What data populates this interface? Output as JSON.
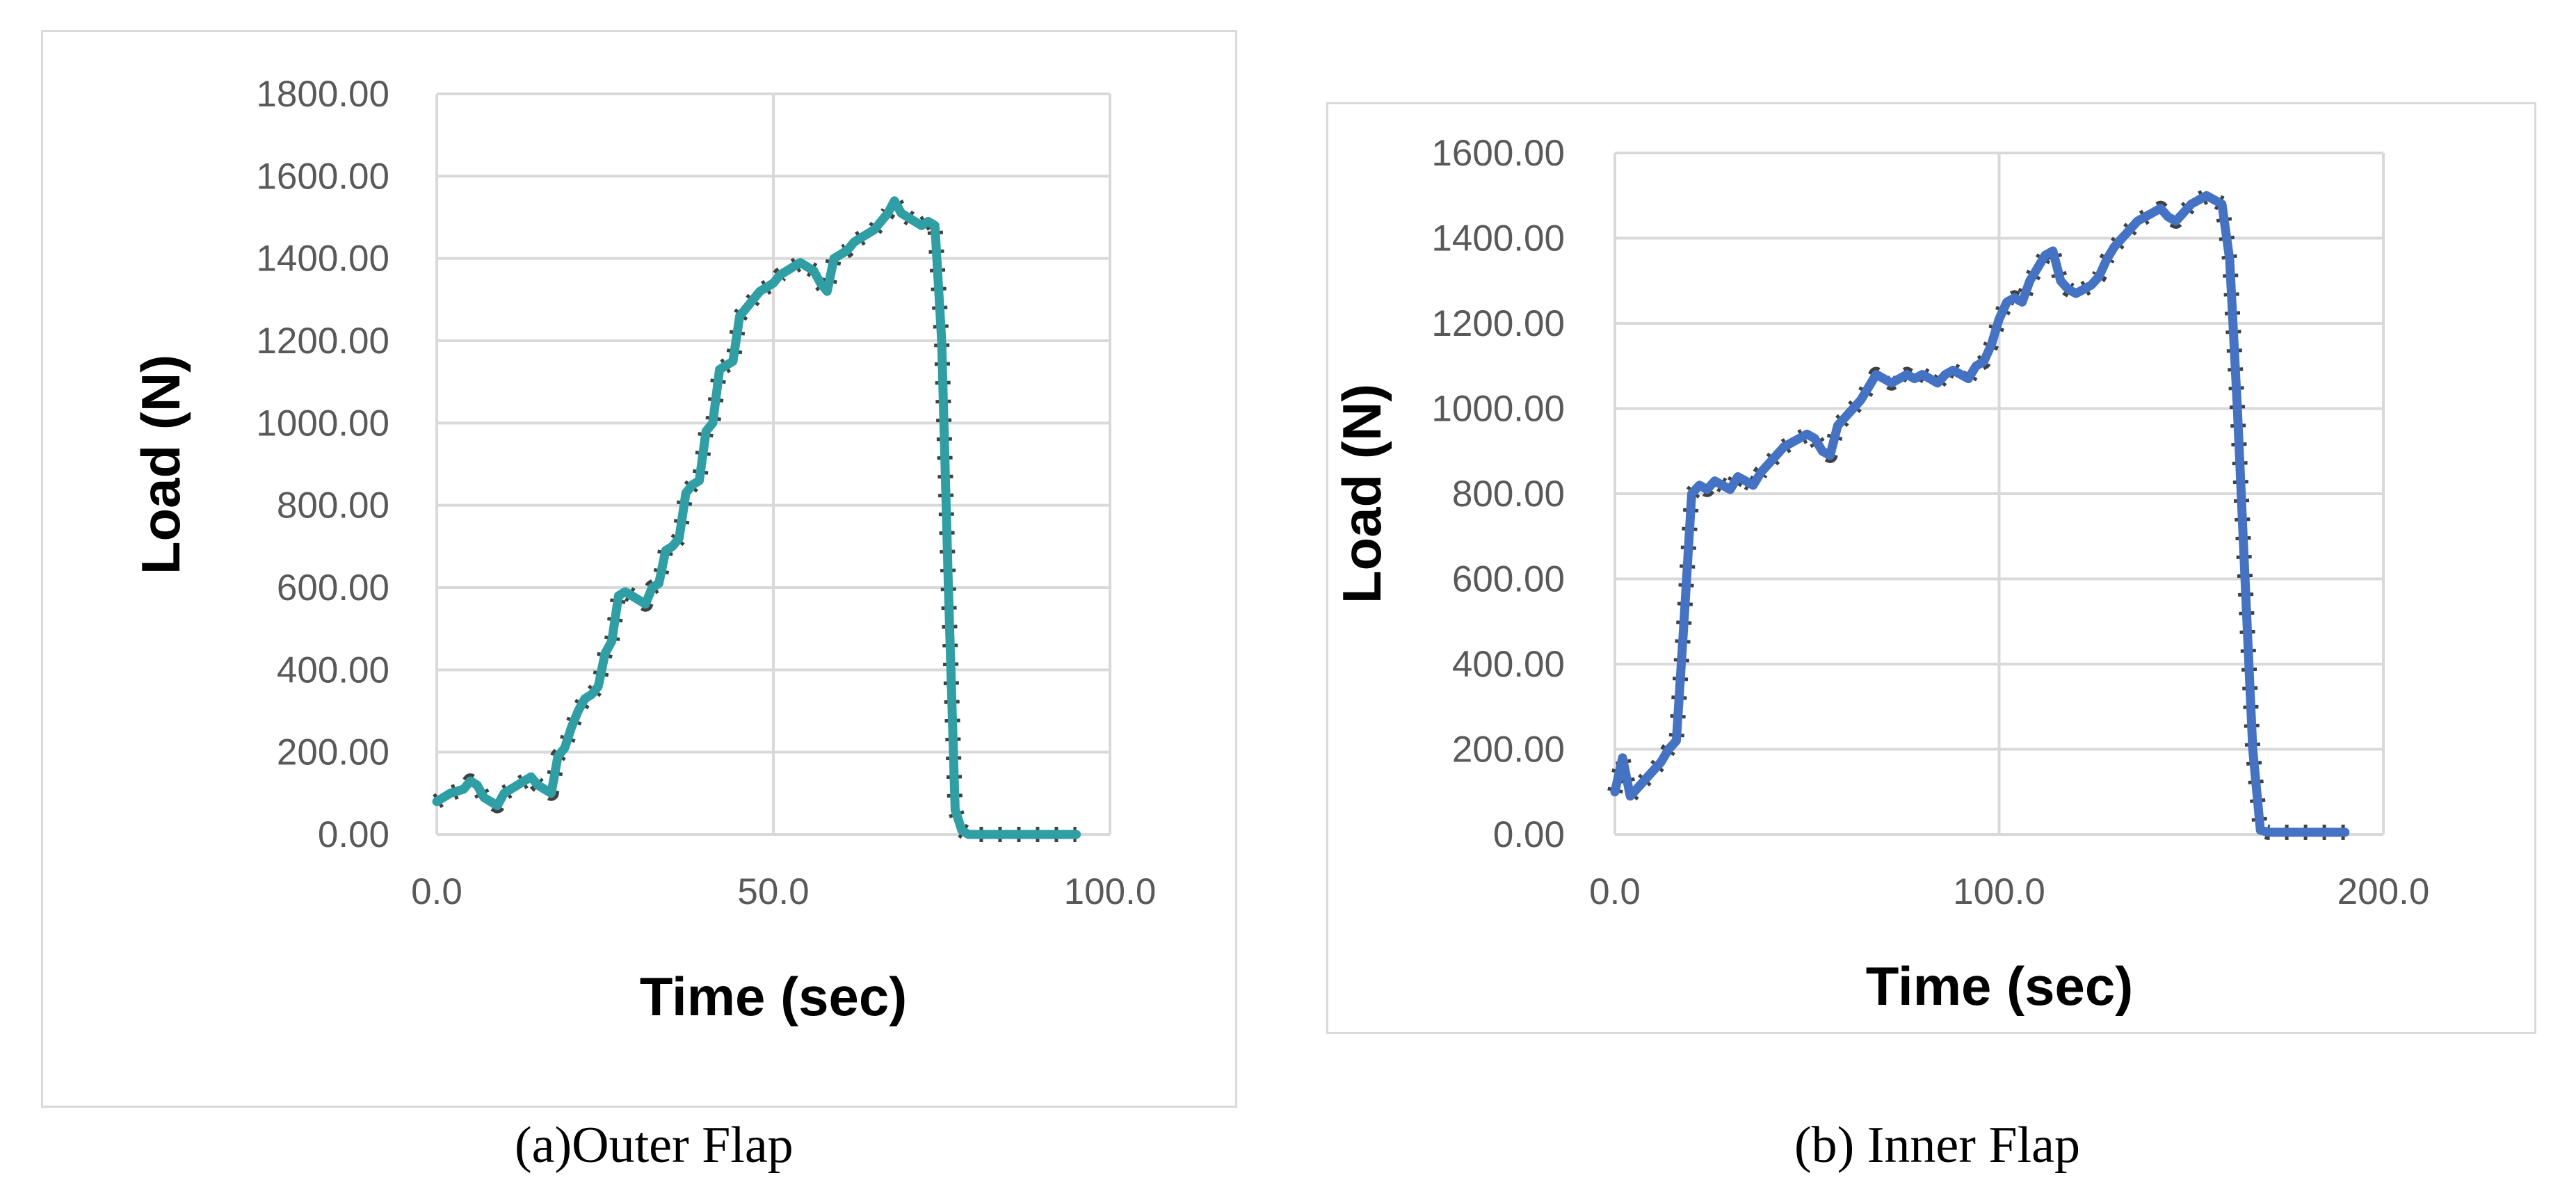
{
  "captions": {
    "a": "(a)Outer Flap",
    "b": "(b) Inner Flap"
  },
  "chart_data": [
    {
      "type": "line",
      "xlabel": "Time (sec)",
      "ylabel": "Load (N)",
      "xlim": [
        0,
        100
      ],
      "ylim": [
        0,
        1800
      ],
      "xticks": [
        "0.0",
        "50.0",
        "100.0"
      ],
      "yticks": [
        "0.00",
        "200.00",
        "400.00",
        "600.00",
        "800.00",
        "1000.00",
        "1200.00",
        "1400.00",
        "1600.00",
        "1800.00"
      ],
      "grid": true,
      "series": [
        {
          "color": "#2e9fa5",
          "x": [
            0,
            2,
            4,
            5,
            6,
            7,
            8,
            9,
            10,
            11,
            12,
            13,
            14,
            15,
            16,
            17,
            18,
            19,
            20,
            21,
            22,
            23,
            24,
            25,
            26,
            27,
            28,
            29,
            30,
            31,
            32,
            33,
            34,
            35,
            36,
            37,
            38,
            39,
            40,
            41,
            42,
            43,
            44,
            45,
            46,
            47,
            48,
            49,
            50,
            51,
            52,
            53,
            54,
            55,
            56,
            57,
            58,
            59,
            60,
            61,
            62,
            63,
            64,
            65,
            66,
            67,
            68,
            69,
            70,
            71,
            72,
            73,
            74,
            75,
            76,
            77,
            78,
            79,
            80,
            85,
            90,
            95
          ],
          "y": [
            80,
            100,
            110,
            130,
            120,
            90,
            80,
            70,
            100,
            110,
            120,
            130,
            140,
            120,
            110,
            100,
            190,
            210,
            260,
            300,
            330,
            340,
            360,
            440,
            470,
            580,
            590,
            580,
            570,
            560,
            600,
            610,
            690,
            700,
            720,
            830,
            850,
            860,
            980,
            1000,
            1130,
            1140,
            1150,
            1260,
            1280,
            1300,
            1320,
            1330,
            1340,
            1360,
            1370,
            1380,
            1390,
            1380,
            1370,
            1340,
            1320,
            1400,
            1410,
            1420,
            1440,
            1450,
            1460,
            1470,
            1490,
            1510,
            1540,
            1510,
            1500,
            1490,
            1480,
            1490,
            1480,
            1200,
            600,
            60,
            10,
            0,
            0,
            0,
            0,
            0
          ]
        }
      ]
    },
    {
      "type": "line",
      "xlabel": "Time (sec)",
      "ylabel": "Load (N)",
      "xlim": [
        0,
        200
      ],
      "ylim": [
        0,
        1600
      ],
      "xticks": [
        "0.0",
        "100.0",
        "200.0"
      ],
      "yticks": [
        "0.00",
        "200.00",
        "400.00",
        "600.00",
        "800.00",
        "1000.00",
        "1200.00",
        "1400.00",
        "1600.00"
      ],
      "grid": true,
      "series": [
        {
          "color": "#4472c4",
          "x": [
            0,
            2,
            4,
            6,
            8,
            10,
            12,
            14,
            16,
            18,
            20,
            22,
            24,
            26,
            28,
            30,
            32,
            34,
            36,
            38,
            40,
            42,
            44,
            46,
            48,
            50,
            52,
            54,
            56,
            58,
            60,
            62,
            64,
            66,
            68,
            70,
            72,
            74,
            76,
            78,
            80,
            82,
            84,
            86,
            88,
            90,
            92,
            94,
            96,
            98,
            100,
            102,
            104,
            106,
            108,
            110,
            112,
            114,
            116,
            118,
            120,
            122,
            124,
            126,
            128,
            130,
            132,
            134,
            136,
            138,
            140,
            142,
            144,
            146,
            148,
            150,
            152,
            154,
            156,
            158,
            160,
            162,
            164,
            166,
            168,
            170,
            180,
            190
          ],
          "y": [
            100,
            180,
            90,
            110,
            130,
            150,
            170,
            200,
            220,
            500,
            800,
            820,
            810,
            830,
            820,
            810,
            840,
            830,
            820,
            850,
            870,
            890,
            910,
            920,
            930,
            940,
            930,
            900,
            890,
            960,
            980,
            1000,
            1020,
            1050,
            1080,
            1070,
            1060,
            1070,
            1080,
            1070,
            1080,
            1070,
            1060,
            1080,
            1090,
            1080,
            1070,
            1100,
            1110,
            1150,
            1210,
            1250,
            1260,
            1250,
            1300,
            1330,
            1360,
            1370,
            1300,
            1280,
            1270,
            1280,
            1290,
            1310,
            1350,
            1380,
            1400,
            1420,
            1440,
            1450,
            1460,
            1470,
            1450,
            1440,
            1460,
            1480,
            1490,
            1500,
            1490,
            1480,
            1350,
            1000,
            600,
            200,
            10,
            5,
            5,
            5
          ]
        }
      ]
    }
  ]
}
